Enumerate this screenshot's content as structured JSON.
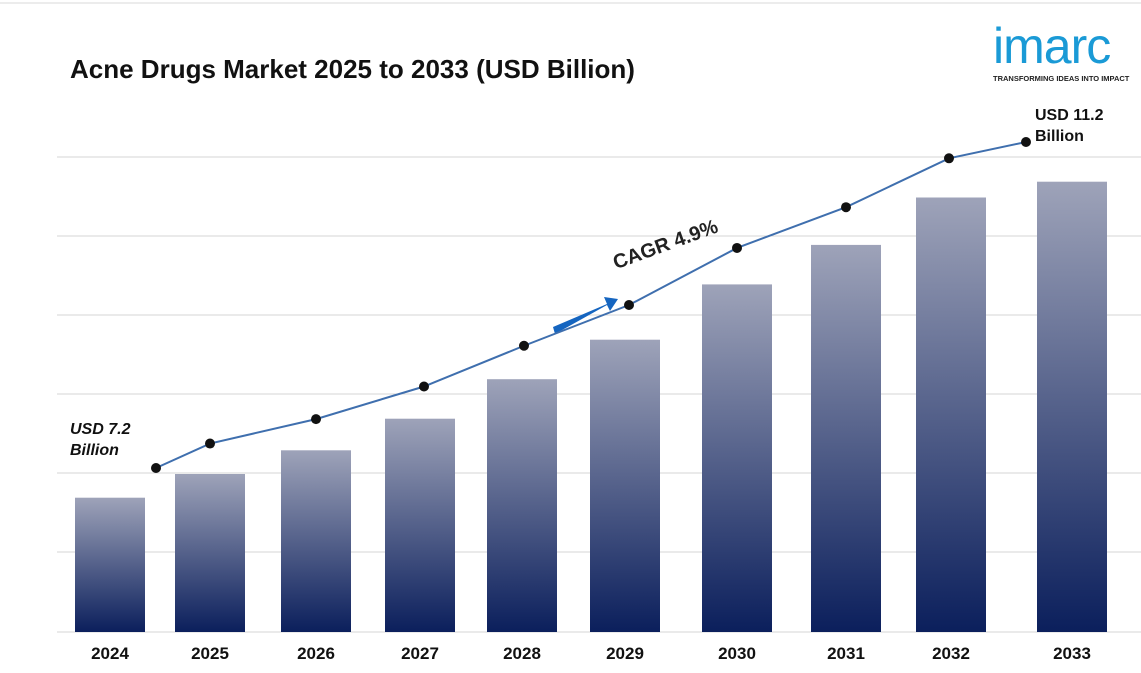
{
  "chart_data": {
    "type": "bar",
    "title": "Acne Drugs Market 2025 to 2033 (USD Billion)",
    "logo": "imarc",
    "tagline": "TRANSFORMING IDEAS INTO IMPACT",
    "annotation": "CAGR 4.9%",
    "categories": [
      "2024",
      "2025",
      "2026",
      "2027",
      "2028",
      "2029",
      "2030",
      "2031",
      "2032",
      "2033"
    ],
    "values": [
      7.2,
      7.5,
      7.8,
      8.2,
      8.7,
      9.2,
      9.9,
      10.4,
      11.0,
      11.2
    ],
    "value_labels": [
      "USD 7.2 Billion",
      null,
      null,
      null,
      null,
      null,
      null,
      null,
      null,
      "USD 11.2 Billion"
    ],
    "color": "#0b1f5c",
    "line_color": "#3f6fae",
    "ylim": [
      5.5,
      11.5
    ]
  }
}
